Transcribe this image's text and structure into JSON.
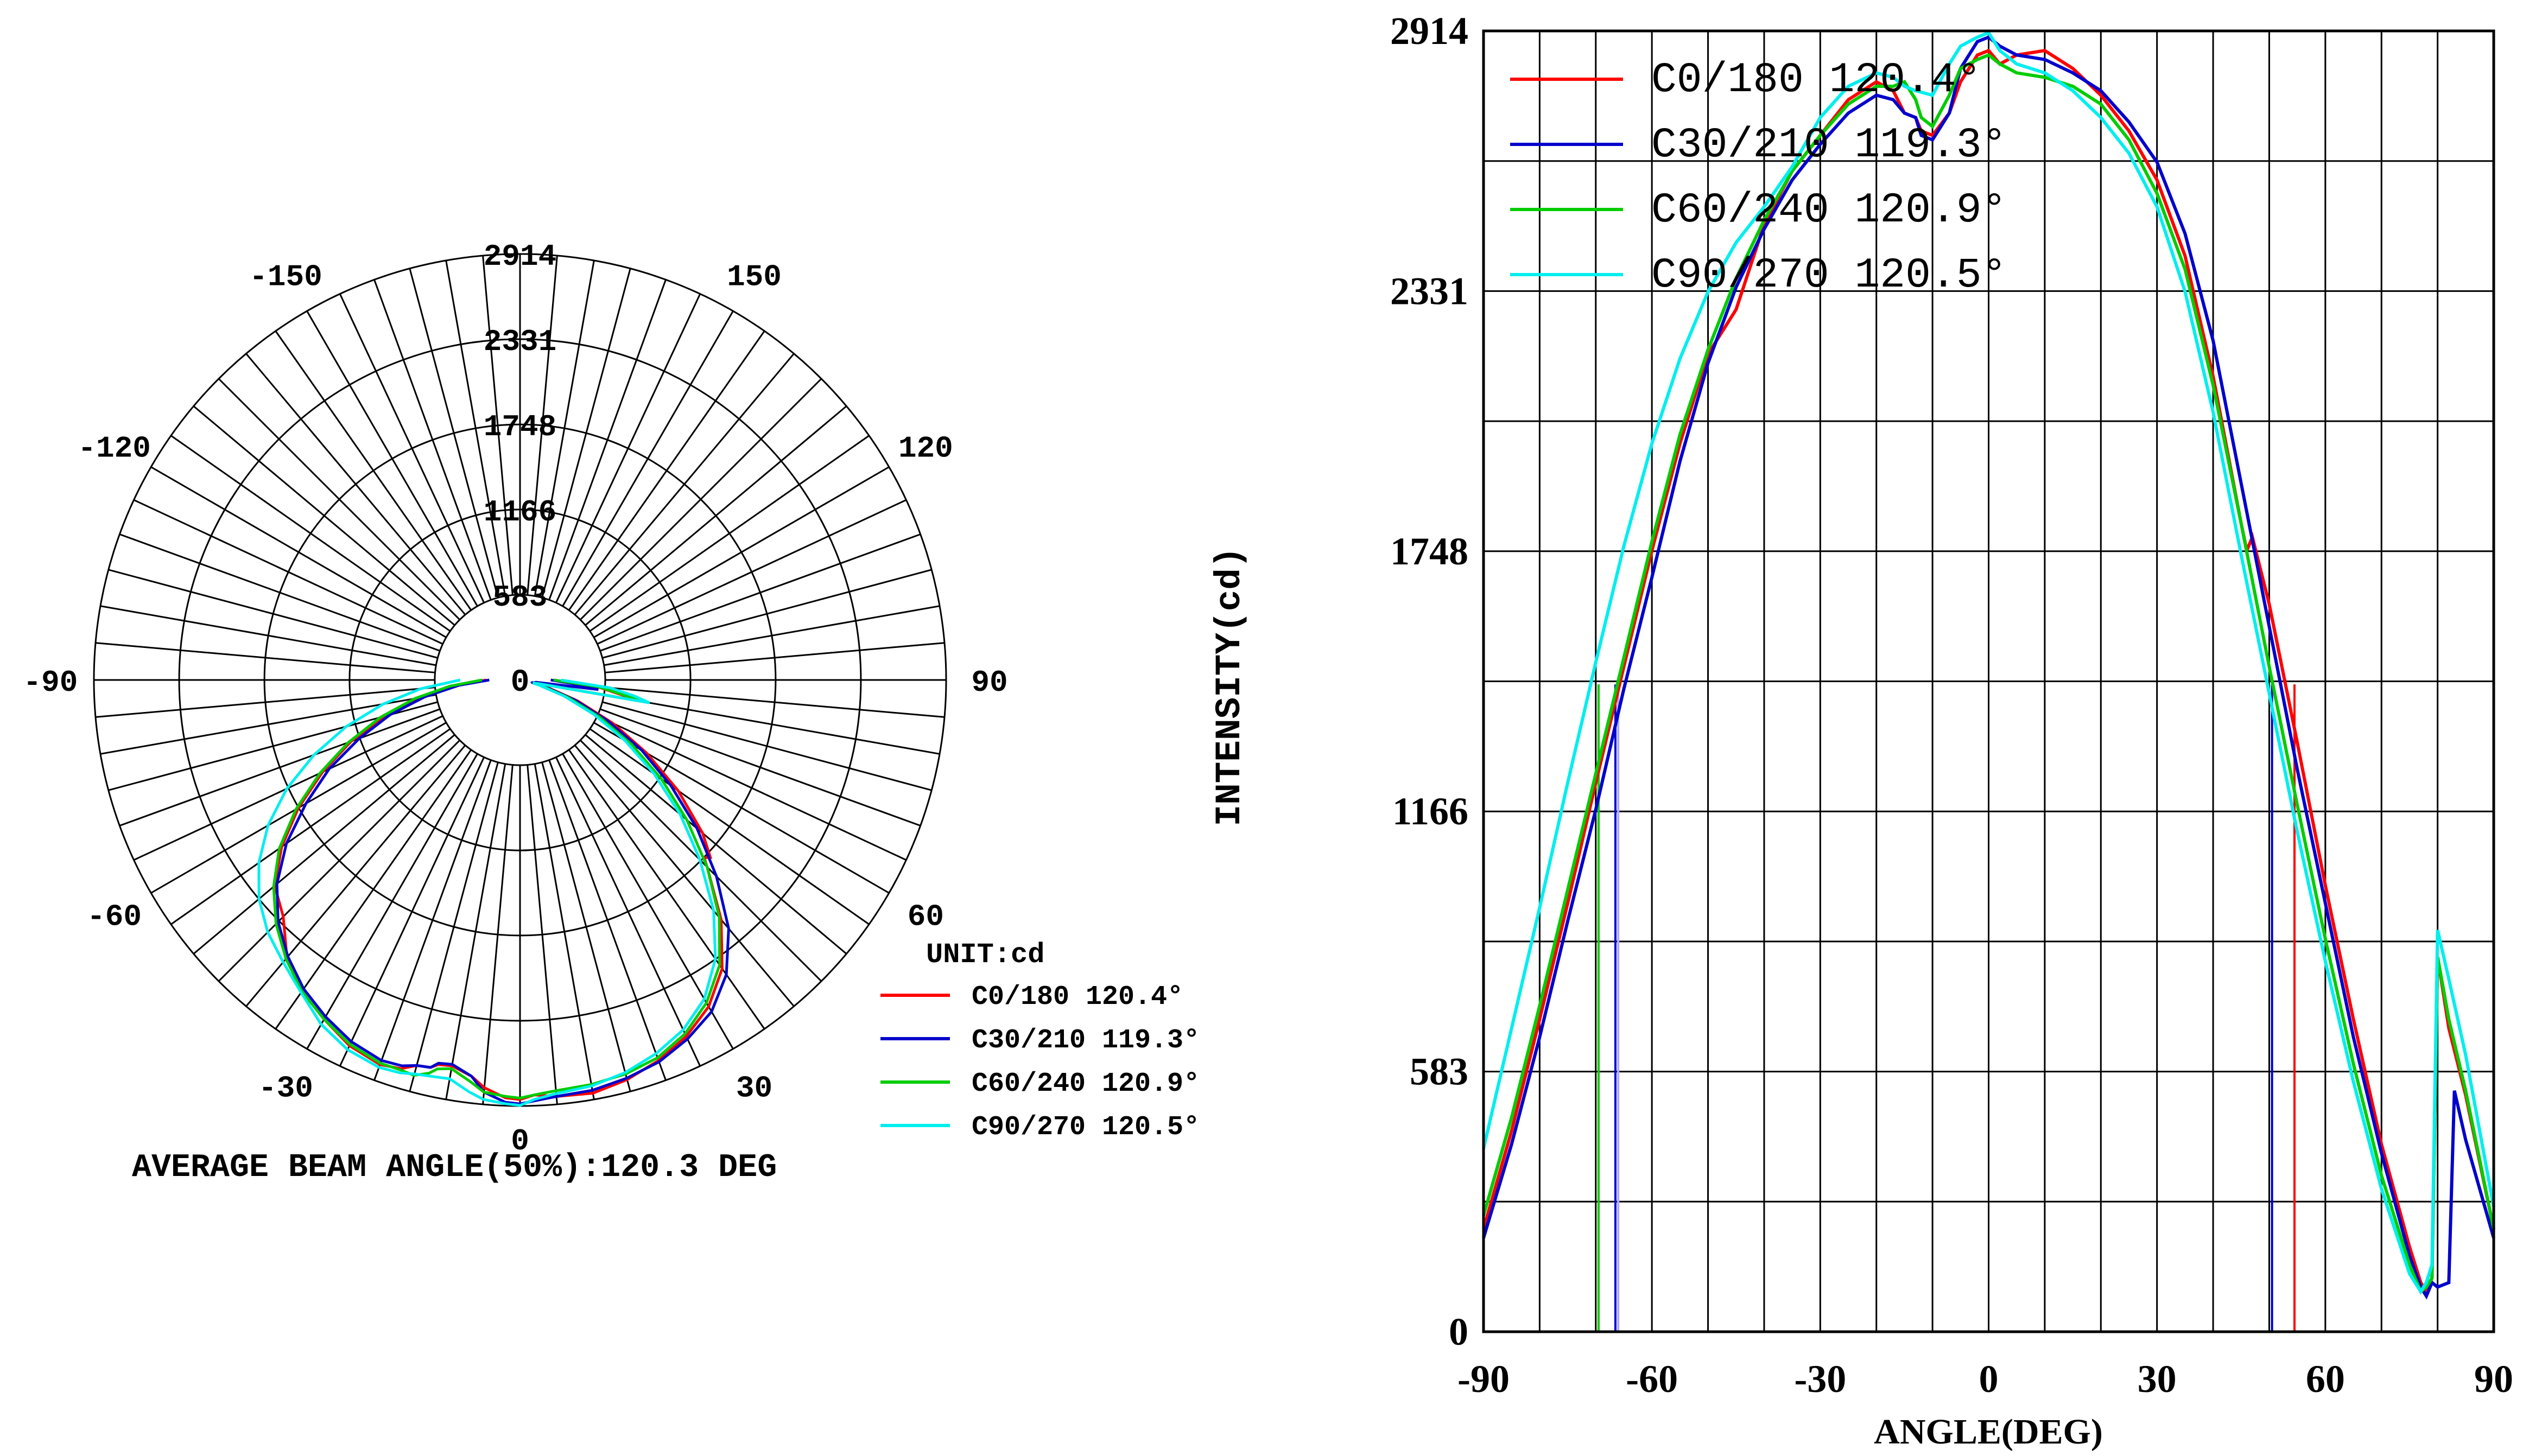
{
  "chart_data": [
    {
      "type": "polar",
      "title": "",
      "unit_label": "UNIT:cd",
      "footer": "AVERAGE BEAM ANGLE(50%):120.3 DEG",
      "radial_ticks": [
        "583",
        "1166",
        "1748",
        "2331",
        "2914"
      ],
      "radial_tick_values": [
        583,
        1166,
        1748,
        2331,
        2914
      ],
      "r_max": 2914,
      "center_label": "0",
      "angle_labels": [
        {
          "text": "0",
          "angle": 0
        },
        {
          "text": "30",
          "angle": 30
        },
        {
          "text": "60",
          "angle": 60
        },
        {
          "text": "90",
          "angle": 90
        },
        {
          "text": "120",
          "angle": 120
        },
        {
          "text": "150",
          "angle": 150
        },
        {
          "text": "-30",
          "angle": -30
        },
        {
          "text": "-60",
          "angle": -60
        },
        {
          "text": "-90",
          "angle": -90
        },
        {
          "text": "-120",
          "angle": -120
        },
        {
          "text": "-150",
          "angle": -150
        }
      ],
      "legend": [
        {
          "label": "C0/180 120.4°",
          "color": "#ff0000"
        },
        {
          "label": "C30/210 119.3°",
          "color": "#0000cc"
        },
        {
          "label": "C60/240 120.9°",
          "color": "#00cc00"
        },
        {
          "label": "C90/270 120.5°",
          "color": "#00eeee"
        }
      ]
    },
    {
      "type": "line",
      "title": "",
      "xlabel": "ANGLE(DEG)",
      "ylabel": "INTENSITY(cd)",
      "xlim": [
        -90,
        90
      ],
      "ylim": [
        0,
        2914
      ],
      "x_ticks": [
        "-90",
        "-60",
        "-30",
        "0",
        "30",
        "60",
        "90"
      ],
      "x_tick_values": [
        -90,
        -60,
        -30,
        0,
        30,
        60,
        90
      ],
      "y_ticks": [
        "0",
        "583",
        "1166",
        "1748",
        "2331",
        "2914"
      ],
      "y_tick_values": [
        0,
        583,
        1166,
        1748,
        2331,
        2914
      ],
      "grid": true,
      "legend_position": "top-left",
      "series": [
        {
          "name": "C0/180 120.4°",
          "color": "#ff0000",
          "x": [
            -90,
            -85,
            -80,
            -75,
            -70,
            -65,
            -60,
            -55,
            -50,
            -45,
            -40,
            -35,
            -30,
            -25,
            -20,
            -17,
            -15,
            -13,
            -12,
            -10,
            -7,
            -5,
            -2,
            0,
            2,
            5,
            10,
            15,
            20,
            25,
            30,
            35,
            40,
            45,
            46,
            47,
            50,
            55,
            60,
            65,
            70,
            75,
            77,
            78,
            79,
            80,
            82,
            85,
            90
          ],
          "y": [
            230,
            450,
            700,
            960,
            1230,
            1490,
            1750,
            1990,
            2190,
            2290,
            2480,
            2600,
            2680,
            2760,
            2800,
            2780,
            2730,
            2720,
            2690,
            2680,
            2730,
            2800,
            2860,
            2870,
            2840,
            2860,
            2870,
            2830,
            2770,
            2690,
            2580,
            2410,
            2140,
            1810,
            1750,
            1780,
            1630,
            1320,
            1000,
            700,
            420,
            190,
            110,
            90,
            120,
            840,
            680,
            530,
            230
          ]
        },
        {
          "name": "C30/210 119.3°",
          "color": "#0000cc",
          "x": [
            -90,
            -85,
            -80,
            -75,
            -70,
            -65,
            -60,
            -55,
            -50,
            -45,
            -40,
            -35,
            -30,
            -25,
            -20,
            -17,
            -15,
            -13,
            -12,
            -10,
            -7,
            -5,
            -2,
            0,
            2,
            5,
            10,
            15,
            20,
            25,
            30,
            35,
            40,
            45,
            50,
            55,
            60,
            65,
            70,
            75,
            77,
            78,
            79,
            80,
            82,
            83,
            85,
            90
          ],
          "y": [
            210,
            420,
            660,
            920,
            1170,
            1440,
            1690,
            1950,
            2170,
            2340,
            2470,
            2580,
            2660,
            2730,
            2770,
            2760,
            2730,
            2720,
            2680,
            2670,
            2730,
            2830,
            2890,
            2900,
            2880,
            2860,
            2850,
            2820,
            2780,
            2710,
            2620,
            2460,
            2220,
            1900,
            1580,
            1260,
            960,
            660,
            400,
            170,
            100,
            80,
            110,
            100,
            110,
            540,
            430,
            210
          ]
        },
        {
          "name": "C60/240 120.9°",
          "color": "#00cc00",
          "x": [
            -90,
            -85,
            -80,
            -75,
            -70,
            -65,
            -60,
            -55,
            -50,
            -45,
            -40,
            -35,
            -30,
            -25,
            -20,
            -17,
            -15,
            -13,
            -12,
            -10,
            -7,
            -5,
            -2,
            0,
            2,
            5,
            10,
            15,
            20,
            25,
            30,
            35,
            40,
            45,
            50,
            55,
            60,
            65,
            70,
            75,
            77,
            78,
            79,
            80,
            82,
            85,
            90
          ],
          "y": [
            260,
            480,
            730,
            990,
            1250,
            1510,
            1770,
            2010,
            2200,
            2360,
            2490,
            2600,
            2680,
            2750,
            2790,
            2790,
            2800,
            2760,
            2720,
            2700,
            2770,
            2830,
            2850,
            2860,
            2840,
            2820,
            2810,
            2790,
            2750,
            2670,
            2550,
            2380,
            2120,
            1810,
            1490,
            1180,
            880,
            600,
            350,
            150,
            90,
            100,
            120,
            840,
            700,
            540,
            230
          ]
        },
        {
          "name": "C90/270 120.5°",
          "color": "#00eeee",
          "x": [
            -90,
            -85,
            -80,
            -75,
            -70,
            -65,
            -60,
            -55,
            -50,
            -45,
            -40,
            -35,
            -30,
            -25,
            -20,
            -17,
            -15,
            -13,
            -10,
            -7,
            -5,
            -2,
            0,
            2,
            5,
            10,
            15,
            20,
            25,
            30,
            35,
            40,
            45,
            50,
            55,
            60,
            65,
            70,
            75,
            77,
            78,
            79,
            80,
            82,
            85,
            90
          ],
          "y": [
            410,
            680,
            950,
            1230,
            1500,
            1760,
            1990,
            2180,
            2330,
            2440,
            2520,
            2610,
            2720,
            2790,
            2820,
            2810,
            2790,
            2780,
            2770,
            2840,
            2880,
            2900,
            2910,
            2870,
            2840,
            2820,
            2780,
            2720,
            2640,
            2520,
            2330,
            2060,
            1740,
            1430,
            1120,
            830,
            560,
            320,
            130,
            90,
            110,
            150,
            900,
            790,
            620,
            280
          ]
        }
      ],
      "legend": [
        {
          "label": "C0/180 120.4°",
          "color": "#ff0000"
        },
        {
          "label": "C30/210 119.3°",
          "color": "#0000cc"
        },
        {
          "label": "C60/240 120.9°",
          "color": "#00cc00"
        },
        {
          "label": "C90/270 120.5°",
          "color": "#00eeee"
        }
      ],
      "beam_markers": [
        {
          "x": -69.5,
          "color": "#ff0000"
        },
        {
          "x": -69.5,
          "color": "#00cc00"
        },
        {
          "x": -66.5,
          "color": "#0000cc"
        },
        {
          "x": -66.0,
          "color": "#aaaaff"
        },
        {
          "x": 50.5,
          "color": "#0000cc"
        },
        {
          "x": 54.5,
          "color": "#00cc00"
        },
        {
          "x": 54.5,
          "color": "#ff0000"
        }
      ]
    }
  ]
}
